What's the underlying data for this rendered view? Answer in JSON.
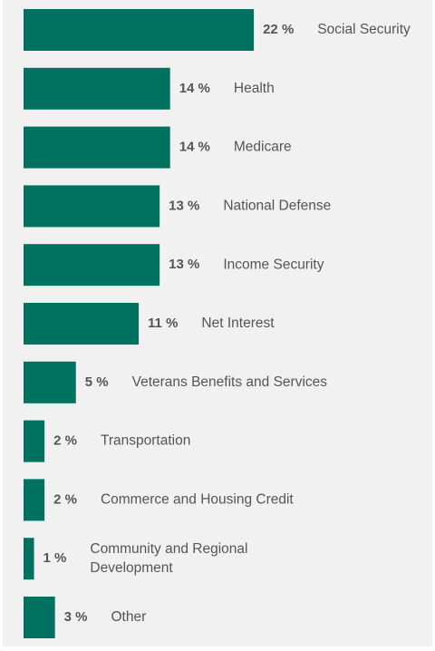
{
  "chart_data": {
    "type": "bar",
    "orientation": "horizontal",
    "title": "",
    "xlabel": "",
    "ylabel": "",
    "grid": false,
    "legend": "none",
    "value_suffix": " %",
    "categories": [
      "Social Security",
      "Health",
      "Medicare",
      "National Defense",
      "Income Security",
      "Net Interest",
      "Veterans Benefits and Services",
      "Transportation",
      "Commerce and Housing Credit",
      "Community and Regional Development",
      "Other"
    ],
    "category_lines": [
      [
        "Social Security"
      ],
      [
        "Health"
      ],
      [
        "Medicare"
      ],
      [
        "National Defense"
      ],
      [
        "Income Security"
      ],
      [
        "Net Interest"
      ],
      [
        "Veterans Benefits and Services"
      ],
      [
        "Transportation"
      ],
      [
        "Commerce and Housing Credit"
      ],
      [
        "Community and Regional",
        "Development"
      ],
      [
        "Other"
      ]
    ],
    "values": [
      22,
      14,
      14,
      13,
      13,
      11,
      5,
      2,
      2,
      1,
      3
    ],
    "value_labels": [
      "22 %",
      "14 %",
      "14 %",
      "13 %",
      "13 %",
      "11 %",
      "5 %",
      "2 %",
      "2 %",
      "1 %",
      "3 %"
    ],
    "colors": {
      "bar": "#00725f",
      "text": "#555555",
      "background": "#f1f1f1"
    }
  }
}
